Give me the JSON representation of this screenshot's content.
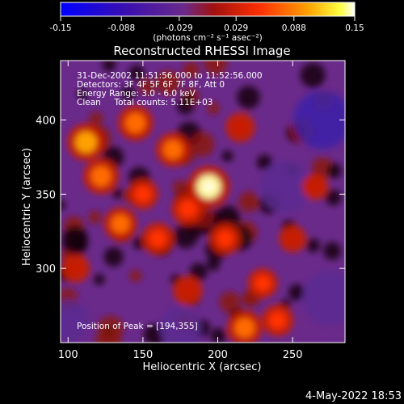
{
  "window": {
    "date_stamp": "4-May-2022 18:53"
  },
  "colorbar": {
    "ticks": [
      "-0.15",
      "-0.088",
      "-0.029",
      "0.029",
      "0.088",
      "0.15"
    ],
    "unit_label": "(photons cm⁻² s⁻¹ asec⁻²)",
    "range": [
      -0.15,
      0.15
    ]
  },
  "chart_data": {
    "type": "heatmap",
    "title": "Reconstructed RHESSI Image",
    "xlabel": "Heliocentric X (arcsec)",
    "ylabel": "Heliocentric Y (arcsec)",
    "xlim": [
      95,
      285
    ],
    "ylim": [
      250,
      440
    ],
    "x_ticks": [
      100,
      150,
      200,
      250
    ],
    "y_ticks": [
      300,
      350,
      400
    ],
    "colormap": "blue-purple-red-orange-yellow-white",
    "peak": [
      194,
      355
    ],
    "annotations": [
      "31-Dec-2002 11:51:56.000 to 11:52:56.000",
      "Detectors: 3F 4F 5F 6F 7F 8F, Att 0",
      "Energy Range: 3.0 - 6.0 keV",
      "Clean     Total counts: 5.11E+03"
    ],
    "peak_label": "Position of Peak = [194,355]",
    "hotspots": [
      {
        "x": 194,
        "y": 355,
        "intensity": 1.0
      },
      {
        "x": 112,
        "y": 385,
        "intensity": 0.8
      },
      {
        "x": 122,
        "y": 362,
        "intensity": 0.72
      },
      {
        "x": 145,
        "y": 398,
        "intensity": 0.7
      },
      {
        "x": 170,
        "y": 380,
        "intensity": 0.65
      },
      {
        "x": 180,
        "y": 340,
        "intensity": 0.6
      },
      {
        "x": 135,
        "y": 330,
        "intensity": 0.62
      },
      {
        "x": 160,
        "y": 320,
        "intensity": 0.58
      },
      {
        "x": 150,
        "y": 350,
        "intensity": 0.5
      },
      {
        "x": 205,
        "y": 320,
        "intensity": 0.55
      },
      {
        "x": 230,
        "y": 290,
        "intensity": 0.48
      },
      {
        "x": 218,
        "y": 260,
        "intensity": 0.7
      },
      {
        "x": 240,
        "y": 265,
        "intensity": 0.55
      },
      {
        "x": 250,
        "y": 320,
        "intensity": 0.35
      },
      {
        "x": 215,
        "y": 395,
        "intensity": 0.45
      },
      {
        "x": 105,
        "y": 300,
        "intensity": 0.4
      },
      {
        "x": 180,
        "y": 285,
        "intensity": 0.45
      },
      {
        "x": 265,
        "y": 355,
        "intensity": 0.3
      }
    ],
    "coldspots": [
      {
        "x": 270,
        "y": 400,
        "intensity": 0.55
      },
      {
        "x": 275,
        "y": 280,
        "intensity": 0.5
      },
      {
        "x": 245,
        "y": 355,
        "intensity": 0.45
      },
      {
        "x": 175,
        "y": 260,
        "intensity": 0.3
      },
      {
        "x": 100,
        "y": 265,
        "intensity": 0.3
      }
    ]
  }
}
